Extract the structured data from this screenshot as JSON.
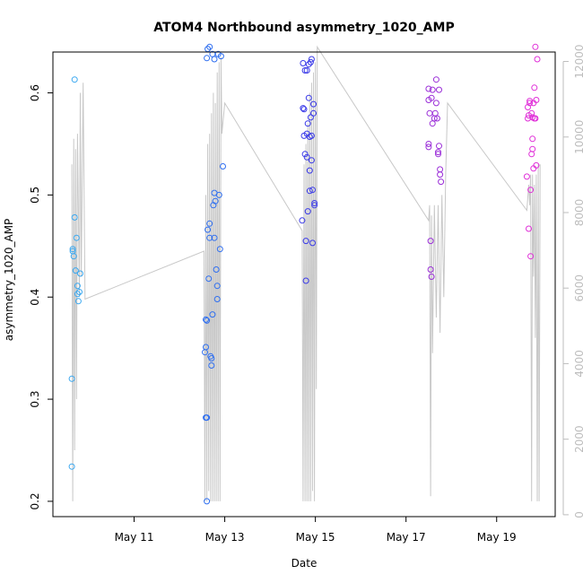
{
  "chart_data": {
    "type": "scatter",
    "title": "ATOM4 Northbound asymmetry_1020_AMP",
    "xlabel": "Date",
    "ylabel": "asymmetry_1020_AMP",
    "xlim": [
      "2016-05-09T05:00",
      "2016-05-20T07:00"
    ],
    "ylim": [
      0.185,
      0.64
    ],
    "x_ticks": [
      "May 11",
      "May 13",
      "May 15",
      "May 17",
      "May 19"
    ],
    "y_ticks": [
      "0.2",
      "0.3",
      "0.4",
      "0.5",
      "0.6"
    ],
    "y2_ticks": [
      "0",
      "2000",
      "4000",
      "6000",
      "8000",
      "10000",
      "12000"
    ],
    "y2lim": [
      -50,
      12250
    ],
    "grid": false,
    "line_series": {
      "color": "#c8c8c8",
      "points": [
        [
          "2016-05-09T15:00",
          0.53
        ],
        [
          "2016-05-09T15:30",
          0.2
        ],
        [
          "2016-05-09T16:00",
          0.555
        ],
        [
          "2016-05-09T16:30",
          0.25
        ],
        [
          "2016-05-09T17:00",
          0.545
        ],
        [
          "2016-05-09T17:30",
          0.3
        ],
        [
          "2016-05-09T18:00",
          0.56
        ],
        [
          "2016-05-09T19:00",
          0.4
        ],
        [
          "2016-05-09T19:30",
          0.6
        ],
        [
          "2016-05-09T20:00",
          0.42
        ],
        [
          "2016-05-09T21:00",
          0.61
        ],
        [
          "2016-05-09T22:00",
          0.398
        ],
        [
          "2016-05-12T13:00",
          0.445
        ],
        [
          "2016-05-12T13:30",
          0.2
        ],
        [
          "2016-05-12T14:00",
          0.5
        ],
        [
          "2016-05-12T14:30",
          0.2
        ],
        [
          "2016-05-12T15:00",
          0.55
        ],
        [
          "2016-05-12T15:30",
          0.21
        ],
        [
          "2016-05-12T16:00",
          0.56
        ],
        [
          "2016-05-12T16:30",
          0.2
        ],
        [
          "2016-05-12T17:00",
          0.58
        ],
        [
          "2016-05-12T17:30",
          0.2
        ],
        [
          "2016-05-12T18:00",
          0.6
        ],
        [
          "2016-05-12T18:30",
          0.2
        ],
        [
          "2016-05-12T19:00",
          0.59
        ],
        [
          "2016-05-12T19:30",
          0.2
        ],
        [
          "2016-05-12T20:00",
          0.62
        ],
        [
          "2016-05-12T20:30",
          0.2
        ],
        [
          "2016-05-12T21:00",
          0.63
        ],
        [
          "2016-05-12T21:30",
          0.2
        ],
        [
          "2016-05-12T22:00",
          0.635
        ],
        [
          "2016-05-12T22:30",
          0.56
        ],
        [
          "2016-05-13T00:00",
          0.59
        ],
        [
          "2016-05-14T17:00",
          0.465
        ],
        [
          "2016-05-14T17:30",
          0.2
        ],
        [
          "2016-05-14T18:00",
          0.53
        ],
        [
          "2016-05-14T18:30",
          0.2
        ],
        [
          "2016-05-14T19:00",
          0.55
        ],
        [
          "2016-05-14T19:30",
          0.2
        ],
        [
          "2016-05-14T20:00",
          0.57
        ],
        [
          "2016-05-14T20:30",
          0.2
        ],
        [
          "2016-05-14T21:00",
          0.6
        ],
        [
          "2016-05-14T21:30",
          0.2
        ],
        [
          "2016-05-14T22:00",
          0.61
        ],
        [
          "2016-05-14T22:30",
          0.21
        ],
        [
          "2016-05-14T23:00",
          0.62
        ],
        [
          "2016-05-14T23:30",
          0.2
        ],
        [
          "2016-05-15T00:00",
          0.63
        ],
        [
          "2016-05-15T00:30",
          0.31
        ],
        [
          "2016-05-15T01:00",
          0.645
        ],
        [
          "2016-05-17T12:00",
          0.475
        ],
        [
          "2016-05-17T12:30",
          0.49
        ],
        [
          "2016-05-17T13:00",
          0.205
        ],
        [
          "2016-05-17T13:30",
          0.48
        ],
        [
          "2016-05-17T14:00",
          0.345
        ],
        [
          "2016-05-17T15:00",
          0.49
        ],
        [
          "2016-05-17T16:00",
          0.38
        ],
        [
          "2016-05-17T17:00",
          0.49
        ],
        [
          "2016-05-17T18:00",
          0.365
        ],
        [
          "2016-05-17T19:00",
          0.5
        ],
        [
          "2016-05-17T20:00",
          0.4
        ],
        [
          "2016-05-17T21:00",
          0.52
        ],
        [
          "2016-05-17T22:00",
          0.59
        ],
        [
          "2016-05-19T16:00",
          0.485
        ],
        [
          "2016-05-19T17:00",
          0.51
        ],
        [
          "2016-05-19T17:30",
          0.49
        ],
        [
          "2016-05-19T18:00",
          0.52
        ],
        [
          "2016-05-19T18:30",
          0.2
        ],
        [
          "2016-05-19T19:00",
          0.52
        ],
        [
          "2016-05-19T19:30",
          0.42
        ],
        [
          "2016-05-19T20:00",
          0.51
        ],
        [
          "2016-05-19T20:30",
          0.36
        ],
        [
          "2016-05-19T21:00",
          0.52
        ],
        [
          "2016-05-19T21:30",
          0.2
        ],
        [
          "2016-05-19T22:00",
          0.53
        ],
        [
          "2016-05-19T22:30",
          0.2
        ],
        [
          "2016-05-19T23:00",
          0.53
        ]
      ]
    },
    "points": [
      [
        "2016-05-09T15:00",
        0.234,
        "#3aa8f0"
      ],
      [
        "2016-05-09T15:00",
        0.32,
        "#3aa8f0"
      ],
      [
        "2016-05-09T15:30",
        0.445,
        "#3aa8f0"
      ],
      [
        "2016-05-09T15:30",
        0.447,
        "#3aa8f0"
      ],
      [
        "2016-05-09T16:00",
        0.44,
        "#3aa8f0"
      ],
      [
        "2016-05-09T16:30",
        0.478,
        "#3aa8f0"
      ],
      [
        "2016-05-09T16:30",
        0.613,
        "#3aa8f0"
      ],
      [
        "2016-05-09T17:00",
        0.426,
        "#3aa8f0"
      ],
      [
        "2016-05-09T17:30",
        0.458,
        "#3aa8f0"
      ],
      [
        "2016-05-09T18:00",
        0.411,
        "#3aa8f0"
      ],
      [
        "2016-05-09T18:00",
        0.403,
        "#3aa8f0"
      ],
      [
        "2016-05-09T18:30",
        0.396,
        "#3aa8f0"
      ],
      [
        "2016-05-09T19:00",
        0.405,
        "#3aa8f0"
      ],
      [
        "2016-05-09T19:30",
        0.423,
        "#3aa8f0"
      ],
      [
        "2016-05-12T13:30",
        0.346,
        "#2f6ff0"
      ],
      [
        "2016-05-12T14:00",
        0.351,
        "#2f6ff0"
      ],
      [
        "2016-05-12T14:00",
        0.282,
        "#2f6ff0"
      ],
      [
        "2016-05-12T14:00",
        0.378,
        "#2f6ff0"
      ],
      [
        "2016-05-12T14:30",
        0.2,
        "#2f6ff0"
      ],
      [
        "2016-05-12T14:30",
        0.282,
        "#2f6ff0"
      ],
      [
        "2016-05-12T14:30",
        0.377,
        "#2f6ff0"
      ],
      [
        "2016-05-12T14:30",
        0.634,
        "#2f6ff0"
      ],
      [
        "2016-05-12T15:00",
        0.466,
        "#2f6ff0"
      ],
      [
        "2016-05-12T15:00",
        0.643,
        "#2f6ff0"
      ],
      [
        "2016-05-12T15:30",
        0.418,
        "#2f6ff0"
      ],
      [
        "2016-05-12T16:00",
        0.458,
        "#2f6ff0"
      ],
      [
        "2016-05-12T16:00",
        0.472,
        "#2f6ff0"
      ],
      [
        "2016-05-12T16:00",
        0.645,
        "#2f6ff0"
      ],
      [
        "2016-05-12T16:30",
        0.342,
        "#2f6ff0"
      ],
      [
        "2016-05-12T17:00",
        0.34,
        "#2f6ff0"
      ],
      [
        "2016-05-12T17:00",
        0.333,
        "#2f6ff0"
      ],
      [
        "2016-05-12T17:30",
        0.383,
        "#2f6ff0"
      ],
      [
        "2016-05-12T17:30",
        0.638,
        "#2f6ff0"
      ],
      [
        "2016-05-12T18:00",
        0.49,
        "#2f6ff0"
      ],
      [
        "2016-05-12T18:30",
        0.502,
        "#2f6ff0"
      ],
      [
        "2016-05-12T18:30",
        0.458,
        "#2f6ff0"
      ],
      [
        "2016-05-12T18:30",
        0.633,
        "#2f6ff0"
      ],
      [
        "2016-05-12T19:00",
        0.494,
        "#2f6ff0"
      ],
      [
        "2016-05-12T19:30",
        0.427,
        "#2f6ff0"
      ],
      [
        "2016-05-12T20:00",
        0.411,
        "#2f6ff0"
      ],
      [
        "2016-05-12T20:00",
        0.398,
        "#2f6ff0"
      ],
      [
        "2016-05-12T20:30",
        0.638,
        "#2f6ff0"
      ],
      [
        "2016-05-12T21:00",
        0.5,
        "#2f6ff0"
      ],
      [
        "2016-05-12T21:30",
        0.447,
        "#2f6ff0"
      ],
      [
        "2016-05-12T22:00",
        0.636,
        "#2f6ff0"
      ],
      [
        "2016-05-12T23:00",
        0.528,
        "#2f6ff0"
      ],
      [
        "2016-05-14T17:00",
        0.475,
        "#3a3ae8"
      ],
      [
        "2016-05-14T17:30",
        0.585,
        "#3a3ae8"
      ],
      [
        "2016-05-14T17:30",
        0.629,
        "#3a3ae8"
      ],
      [
        "2016-05-14T18:00",
        0.584,
        "#3a3ae8"
      ],
      [
        "2016-05-14T18:00",
        0.558,
        "#3a3ae8"
      ],
      [
        "2016-05-14T18:30",
        0.622,
        "#3a3ae8"
      ],
      [
        "2016-05-14T18:30",
        0.54,
        "#3a3ae8"
      ],
      [
        "2016-05-14T19:00",
        0.455,
        "#3a3ae8"
      ],
      [
        "2016-05-14T19:00",
        0.416,
        "#3a3ae8"
      ],
      [
        "2016-05-14T19:30",
        0.622,
        "#3a3ae8"
      ],
      [
        "2016-05-14T19:30",
        0.537,
        "#3a3ae8"
      ],
      [
        "2016-05-14T19:30",
        0.56,
        "#3a3ae8"
      ],
      [
        "2016-05-14T20:00",
        0.57,
        "#3a3ae8"
      ],
      [
        "2016-05-14T20:00",
        0.484,
        "#3a3ae8"
      ],
      [
        "2016-05-14T20:30",
        0.595,
        "#3a3ae8"
      ],
      [
        "2016-05-14T20:30",
        0.628,
        "#3a3ae8"
      ],
      [
        "2016-05-14T21:00",
        0.557,
        "#3a3ae8"
      ],
      [
        "2016-05-14T21:00",
        0.524,
        "#3a3ae8"
      ],
      [
        "2016-05-14T21:00",
        0.504,
        "#3a3ae8"
      ],
      [
        "2016-05-14T21:30",
        0.576,
        "#3a3ae8"
      ],
      [
        "2016-05-14T21:30",
        0.63,
        "#3a3ae8"
      ],
      [
        "2016-05-14T22:00",
        0.558,
        "#3a3ae8"
      ],
      [
        "2016-05-14T22:00",
        0.534,
        "#3a3ae8"
      ],
      [
        "2016-05-14T22:00",
        0.633,
        "#3a3ae8"
      ],
      [
        "2016-05-14T22:30",
        0.453,
        "#3a3ae8"
      ],
      [
        "2016-05-14T22:30",
        0.505,
        "#3a3ae8"
      ],
      [
        "2016-05-14T23:00",
        0.58,
        "#3a3ae8"
      ],
      [
        "2016-05-14T23:00",
        0.589,
        "#3a3ae8"
      ],
      [
        "2016-05-14T23:30",
        0.49,
        "#3a3ae8"
      ],
      [
        "2016-05-14T23:30",
        0.492,
        "#3a3ae8"
      ],
      [
        "2016-05-17T12:00",
        0.547,
        "#9b2fd8"
      ],
      [
        "2016-05-17T12:00",
        0.55,
        "#9b2fd8"
      ],
      [
        "2016-05-17T12:00",
        0.593,
        "#9b2fd8"
      ],
      [
        "2016-05-17T12:00",
        0.604,
        "#9b2fd8"
      ],
      [
        "2016-05-17T12:30",
        0.58,
        "#9b2fd8"
      ],
      [
        "2016-05-17T13:00",
        0.455,
        "#9b2fd8"
      ],
      [
        "2016-05-17T13:00",
        0.427,
        "#9b2fd8"
      ],
      [
        "2016-05-17T13:30",
        0.42,
        "#9b2fd8"
      ],
      [
        "2016-05-17T13:30",
        0.595,
        "#9b2fd8"
      ],
      [
        "2016-05-17T14:00",
        0.603,
        "#9b2fd8"
      ],
      [
        "2016-05-17T14:00",
        0.57,
        "#9b2fd8"
      ],
      [
        "2016-05-17T15:00",
        0.575,
        "#9b2fd8"
      ],
      [
        "2016-05-17T15:30",
        0.58,
        "#9b2fd8"
      ],
      [
        "2016-05-17T16:00",
        0.59,
        "#9b2fd8"
      ],
      [
        "2016-05-17T16:00",
        0.613,
        "#9b2fd8"
      ],
      [
        "2016-05-17T16:30",
        0.575,
        "#9b2fd8"
      ],
      [
        "2016-05-17T17:00",
        0.54,
        "#9b2fd8"
      ],
      [
        "2016-05-17T17:00",
        0.542,
        "#9b2fd8"
      ],
      [
        "2016-05-17T17:30",
        0.548,
        "#9b2fd8"
      ],
      [
        "2016-05-17T18:00",
        0.52,
        "#9b2fd8"
      ],
      [
        "2016-05-17T18:00",
        0.525,
        "#9b2fd8"
      ],
      [
        "2016-05-17T18:30",
        0.513,
        "#9b2fd8"
      ],
      [
        "2016-05-17T17:30",
        0.603,
        "#9b2fd8"
      ],
      [
        "2016-05-19T16:00",
        0.518,
        "#e030d8"
      ],
      [
        "2016-05-19T16:30",
        0.575,
        "#e030d8"
      ],
      [
        "2016-05-19T16:30",
        0.586,
        "#e030d8"
      ],
      [
        "2016-05-19T17:00",
        0.578,
        "#e030d8"
      ],
      [
        "2016-05-19T17:00",
        0.467,
        "#e030d8"
      ],
      [
        "2016-05-19T17:30",
        0.59,
        "#e030d8"
      ],
      [
        "2016-05-19T17:30",
        0.592,
        "#e030d8"
      ],
      [
        "2016-05-19T18:00",
        0.505,
        "#e030d8"
      ],
      [
        "2016-05-19T18:00",
        0.44,
        "#e030d8"
      ],
      [
        "2016-05-19T18:30",
        0.58,
        "#e030d8"
      ],
      [
        "2016-05-19T18:30",
        0.54,
        "#e030d8"
      ],
      [
        "2016-05-19T19:00",
        0.555,
        "#e030d8"
      ],
      [
        "2016-05-19T19:00",
        0.545,
        "#e030d8"
      ],
      [
        "2016-05-19T19:00",
        0.576,
        "#e030d8"
      ],
      [
        "2016-05-19T19:30",
        0.526,
        "#e030d8"
      ],
      [
        "2016-05-19T19:30",
        0.59,
        "#e030d8"
      ],
      [
        "2016-05-19T20:00",
        0.605,
        "#e030d8"
      ],
      [
        "2016-05-19T20:00",
        0.575,
        "#e030d8"
      ],
      [
        "2016-05-19T20:30",
        0.645,
        "#e030d8"
      ],
      [
        "2016-05-19T20:30",
        0.575,
        "#e030d8"
      ],
      [
        "2016-05-19T21:00",
        0.593,
        "#e030d8"
      ],
      [
        "2016-05-19T21:00",
        0.529,
        "#e030d8"
      ],
      [
        "2016-05-19T21:30",
        0.633,
        "#e030d8"
      ]
    ]
  }
}
